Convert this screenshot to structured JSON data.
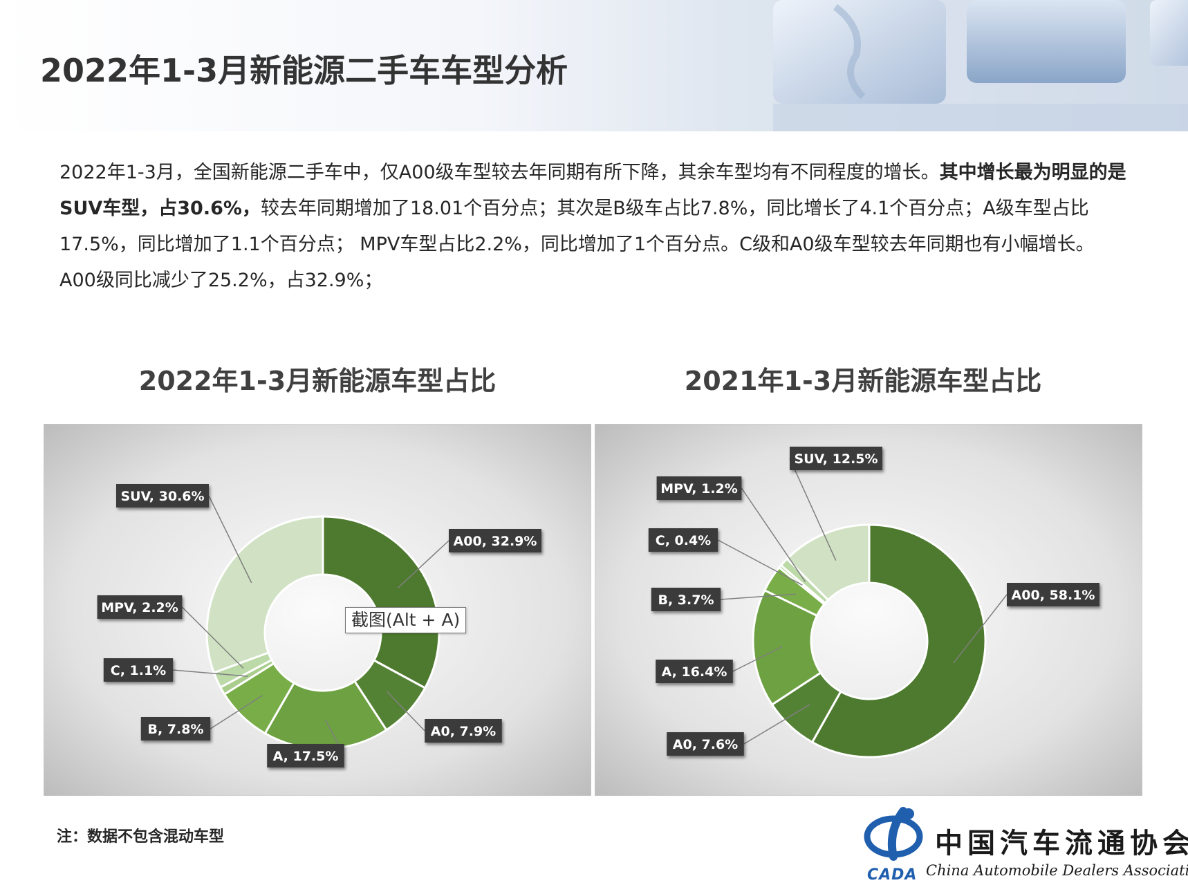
{
  "header": {
    "title": "2022年1-3月新能源二手车车型分析"
  },
  "intro": {
    "p1": "2022年1-3月，全国新能源二手车中，仅A00级车型较去年同期有所下降，其余车型均有不同程度的增长。",
    "p2_bold": "其中增长最为明显的是SUV车型，占30.6%，",
    "p3": "较去年同期增加了18.01个百分点；其次是B级车占比7.8%，同比增长了4.1个百分点；A级车型占比17.5%，同比增加了1.1个百分点； MPV车型占比2.2%，同比增加了1个百分点。C级和A0级车型较去年同期也有小幅增长。A00级同比减少了25.2%，占32.9%；"
  },
  "tooltip": "截图(Alt + A)",
  "note": "注：数据不包含混动车型",
  "logo": {
    "cn": "中国汽车流通协会",
    "en": "China Automobile Dealers Association",
    "abbr": "CADA"
  },
  "colors": {
    "page_background": "#ffffff",
    "title_text": "#333333",
    "label_box": "#3b3b3b",
    "leader_line": "#7f7f7f",
    "A00": "#4d7a2e",
    "A0": "#548235",
    "A": "#6ea142",
    "B": "#78ad48",
    "C": "#a9cd8c",
    "MPV": "#bcd9a8",
    "SUV": "#d0e2c3"
  },
  "chart_data": [
    {
      "type": "pie",
      "variant": "donut",
      "title": "2022年1-3月新能源车型占比",
      "categories": [
        "A00",
        "A0",
        "A",
        "B",
        "C",
        "MPV",
        "SUV"
      ],
      "values": [
        32.9,
        7.9,
        17.5,
        7.8,
        1.1,
        2.2,
        30.6
      ],
      "labels": [
        "A00, 32.9%",
        "A0, 7.9%",
        "A, 17.5%",
        "B, 7.8%",
        "C, 1.1%",
        "MPV, 2.2%",
        "SUV, 30.6%"
      ],
      "unit": "%"
    },
    {
      "type": "pie",
      "variant": "donut",
      "title": "2021年1-3月新能源车型占比",
      "categories": [
        "A00",
        "A0",
        "A",
        "B",
        "C",
        "MPV",
        "SUV"
      ],
      "values": [
        58.1,
        7.6,
        16.4,
        3.7,
        0.4,
        1.2,
        12.5
      ],
      "labels": [
        "A00, 58.1%",
        "A0, 7.6%",
        "A, 16.4%",
        "B, 3.7%",
        "C, 0.4%",
        "MPV, 1.2%",
        "SUV, 12.5%"
      ],
      "unit": "%"
    }
  ]
}
